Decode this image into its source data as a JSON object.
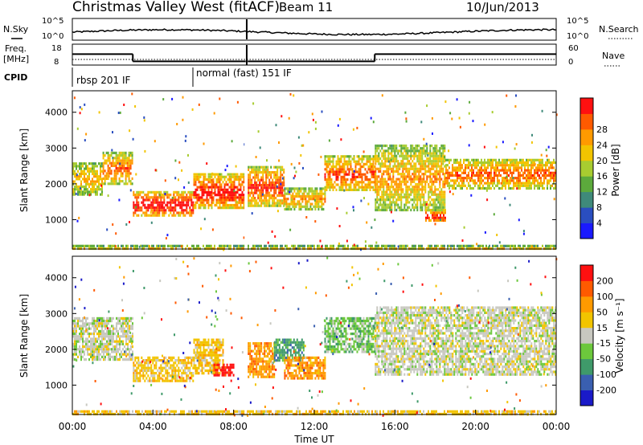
{
  "header": {
    "station": "Christmas Valley West (fitACF)",
    "beam": "Beam 11",
    "date": "10/Jun/2013"
  },
  "top_panels": {
    "nsky_label": "N.Sky",
    "nsky_ticks": [
      "10^5",
      "10^0"
    ],
    "nsearch_label": "N.Search",
    "nsearch_ticks": [
      "10^5",
      "10^0"
    ],
    "freq_label_line1": "Freq.",
    "freq_label_line2": "[MHz]",
    "freq_ticks": [
      "18",
      "8"
    ],
    "nave_label": "Nave",
    "nave_ticks": [
      "60",
      "0"
    ],
    "cpid_label": "CPID",
    "cpid_modes": [
      "rbsp 201 IF",
      "normal (fast) 151 IF"
    ],
    "cpid_boundaries_hours": [
      0,
      6
    ],
    "freq_levels": [
      {
        "start": 0,
        "end": 3.0,
        "value": 15
      },
      {
        "start": 3.0,
        "end": 8.6,
        "value": 10
      },
      {
        "start": 8.7,
        "end": 15.0,
        "value": 10
      },
      {
        "start": 15.0,
        "end": 24,
        "value": 15
      }
    ],
    "nave_dotted_value": 20
  },
  "chart_data": [
    {
      "type": "heatmap",
      "name": "power",
      "ylabel": "Slant Range [km]",
      "yticks": [
        1000,
        2000,
        3000,
        4000
      ],
      "ylim": [
        180,
        4600
      ],
      "xlim": [
        0,
        24
      ],
      "colorbar": {
        "label": "Power [dB]",
        "ticks": [
          "4",
          "8",
          "12",
          "16",
          "20",
          "24",
          "28"
        ],
        "colors": [
          "#1a1aff",
          "#2a4ec0",
          "#3f8a7a",
          "#5caa3c",
          "#a8cc30",
          "#f2c400",
          "#ff9a00",
          "#ff5a00",
          "#ff1010"
        ]
      },
      "data_gap_hours": 8.6,
      "bands": [
        {
          "t": [
            0.0,
            1.5
          ],
          "r": [
            1700,
            2600
          ],
          "v": 0.55
        },
        {
          "t": [
            1.5,
            3.0
          ],
          "r": [
            2000,
            2900
          ],
          "v": 0.7
        },
        {
          "t": [
            3.0,
            6.0
          ],
          "r": [
            1100,
            1800
          ],
          "v": 0.93
        },
        {
          "t": [
            6.0,
            8.6
          ],
          "r": [
            1300,
            2300
          ],
          "v": 0.85
        },
        {
          "t": [
            8.7,
            10.5
          ],
          "r": [
            1400,
            2500
          ],
          "v": 0.8
        },
        {
          "t": [
            10.5,
            12.5
          ],
          "r": [
            1300,
            1900
          ],
          "v": 0.6
        },
        {
          "t": [
            12.5,
            15.0
          ],
          "r": [
            1800,
            2800
          ],
          "v": 0.75
        },
        {
          "t": [
            15.0,
            18.5
          ],
          "r": [
            1300,
            3100
          ],
          "v": 0.6
        },
        {
          "t": [
            18.5,
            24.0
          ],
          "r": [
            1900,
            2700
          ],
          "v": 0.72
        },
        {
          "t": [
            17.5,
            18.5
          ],
          "r": [
            950,
            1300
          ],
          "v": 0.85
        },
        {
          "t": [
            0.0,
            24.0
          ],
          "r": [
            180,
            300
          ],
          "v": 0.5
        }
      ]
    },
    {
      "type": "heatmap",
      "name": "velocity",
      "ylabel": "Slant Range [km]",
      "yticks": [
        1000,
        2000,
        3000,
        4000
      ],
      "ylim": [
        180,
        4600
      ],
      "xlim": [
        0,
        24
      ],
      "xticks": [
        "00:00",
        "04:00",
        "08:00",
        "12:00",
        "16:00",
        "20:00",
        "00:00"
      ],
      "xlabel": "Time UT",
      "colorbar": {
        "label": "Velocity [m s⁻¹]",
        "ticks": [
          "200",
          "100",
          "50",
          "15",
          "-15",
          "-50",
          "-100",
          "-200"
        ],
        "colors": [
          "#1a1ac8",
          "#3a5fb0",
          "#3f9a6a",
          "#6cc83c",
          "#c8c8c0",
          "#f2c400",
          "#ff9a00",
          "#ff5a00",
          "#ff1010"
        ]
      },
      "data_gap_hours": 8.6,
      "bands": [
        {
          "t": [
            0.0,
            3.0
          ],
          "r": [
            1700,
            2900
          ],
          "v": 4
        },
        {
          "t": [
            3.0,
            6.0
          ],
          "r": [
            1100,
            1800
          ],
          "v": 5
        },
        {
          "t": [
            6.0,
            7.5
          ],
          "r": [
            1300,
            2300
          ],
          "v": 5
        },
        {
          "t": [
            7.0,
            8.0
          ],
          "r": [
            1300,
            1600
          ],
          "v": 8
        },
        {
          "t": [
            8.7,
            10.0
          ],
          "r": [
            1200,
            2200
          ],
          "v": 6
        },
        {
          "t": [
            10.0,
            11.5
          ],
          "r": [
            1700,
            2300
          ],
          "v": 2
        },
        {
          "t": [
            10.5,
            12.5
          ],
          "r": [
            1200,
            1800
          ],
          "v": 6
        },
        {
          "t": [
            12.5,
            15.0
          ],
          "r": [
            1900,
            2900
          ],
          "v": 3
        },
        {
          "t": [
            15.0,
            24.0
          ],
          "r": [
            1300,
            3200
          ],
          "v": 4
        },
        {
          "t": [
            0.0,
            24.0
          ],
          "r": [
            180,
            300
          ],
          "v": 5
        }
      ]
    }
  ]
}
